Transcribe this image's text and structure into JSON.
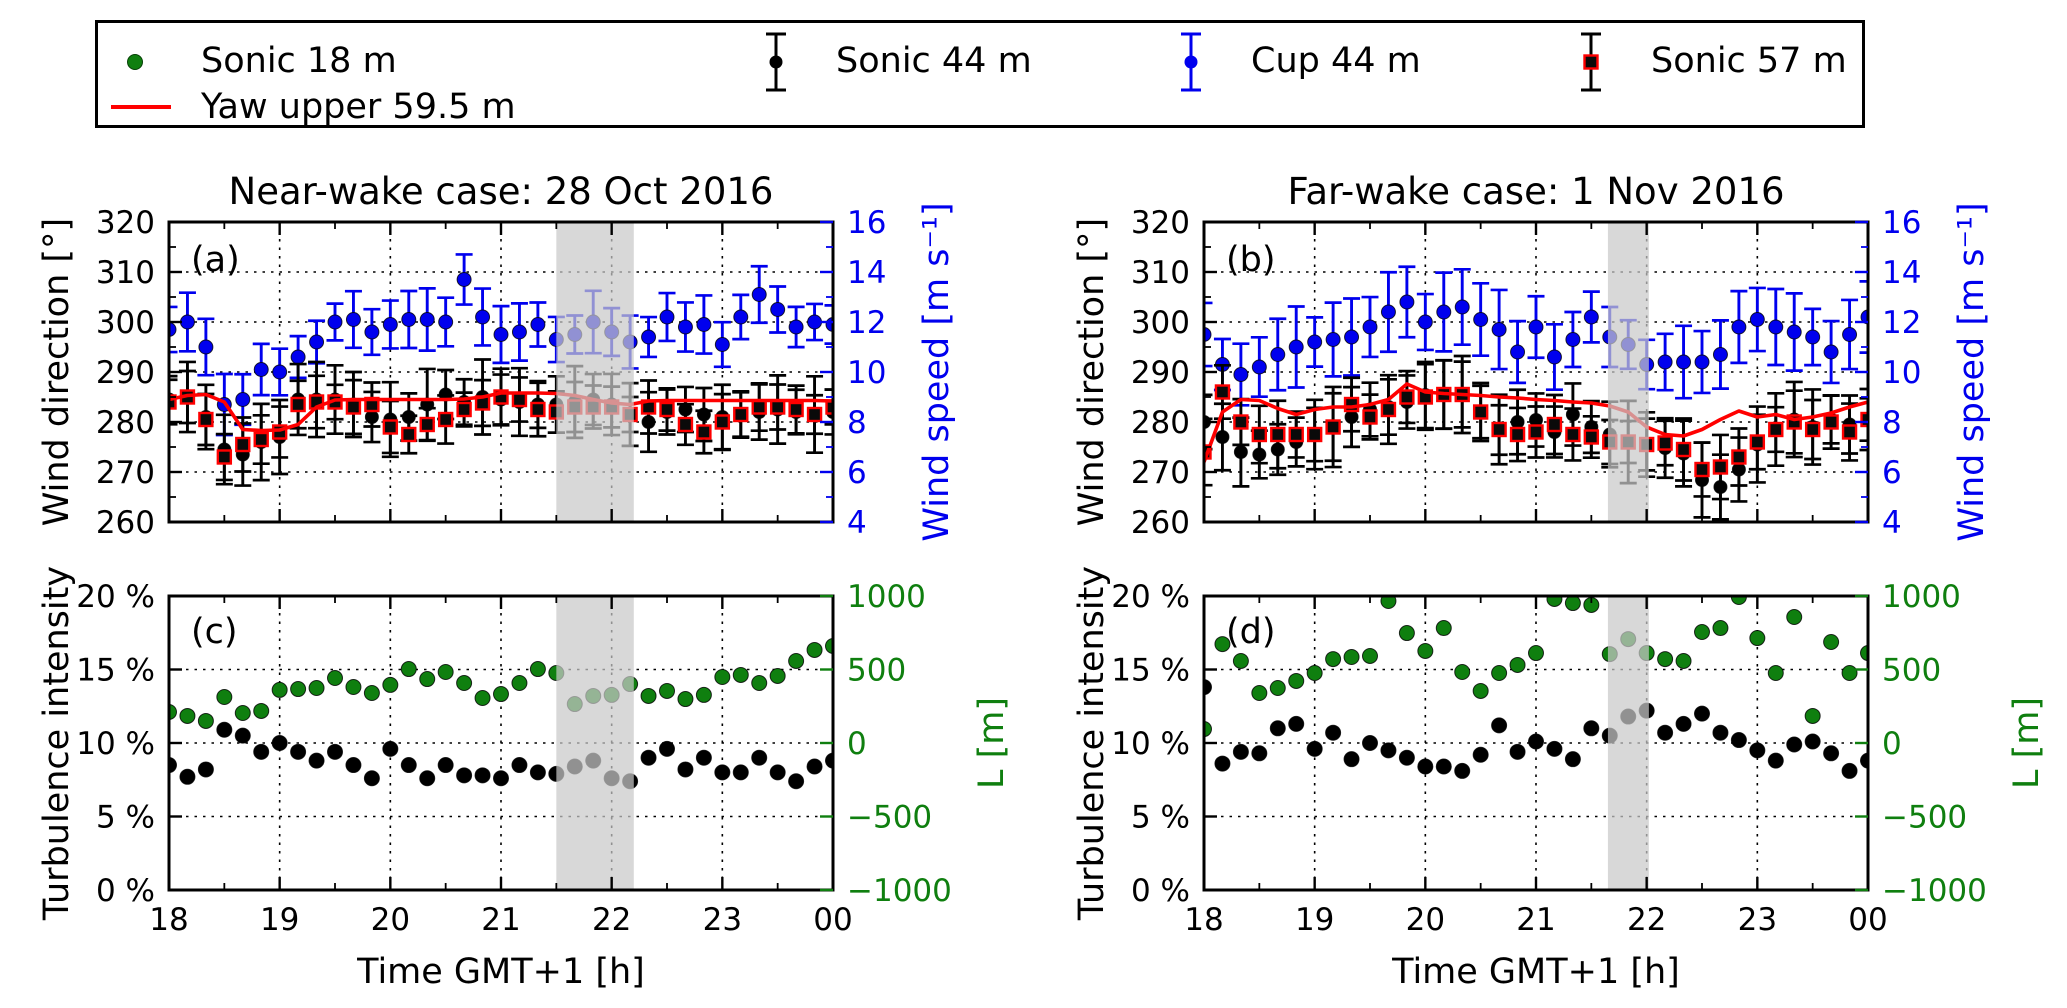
{
  "style": {
    "blue": "#0000ee",
    "green": "#0f7f0f",
    "red": "#ff0000",
    "black": "#000000",
    "band_grey": "#c9c9c9",
    "background": "#ffffff"
  },
  "legend": {
    "items": [
      {
        "id": "sonic18",
        "label": "Sonic 18 m",
        "marker": "dot",
        "color": "#0f7f0f"
      },
      {
        "id": "sonic44",
        "label": "Sonic 44 m",
        "marker": "errorbar-dot",
        "color": "#000000"
      },
      {
        "id": "cup44",
        "label": "Cup 44 m",
        "marker": "errorbar-dot",
        "color": "#0000ee"
      },
      {
        "id": "sonic57",
        "label": "Sonic 57 m",
        "marker": "errorbar-square",
        "color": "#000000",
        "edge": "#ff0000"
      },
      {
        "id": "yaw",
        "label": "Yaw upper 59.5 m",
        "marker": "line",
        "color": "#ff0000"
      }
    ]
  },
  "axes": {
    "x": {
      "label": "Time GMT+1 [h]",
      "ticks": [
        "18",
        "19",
        "20",
        "21",
        "22",
        "23",
        "00"
      ],
      "tick_values": [
        18,
        19,
        20,
        21,
        22,
        23,
        24
      ],
      "grid": [
        19,
        20,
        21,
        22,
        23
      ],
      "minor_step": 0.5,
      "range": [
        18,
        24
      ]
    },
    "wind_direction": {
      "label": "Wind direction [°]",
      "ticks": [
        "320",
        "310",
        "300",
        "290",
        "280",
        "270",
        "260"
      ],
      "tick_values": [
        320,
        310,
        300,
        290,
        280,
        270,
        260
      ],
      "range": [
        260,
        320
      ],
      "grid": [
        310,
        300,
        290,
        280,
        270
      ],
      "minor_step": 5
    },
    "wind_speed": {
      "label": "Wind speed [m s⁻¹]",
      "ticks": [
        "16",
        "14",
        "12",
        "10",
        "8",
        "6",
        "4"
      ],
      "tick_values": [
        16,
        14,
        12,
        10,
        8,
        6,
        4
      ],
      "range": [
        4,
        16
      ],
      "minor_step": 1,
      "color": "#0000ee"
    },
    "turbulence": {
      "label": "Turbulence intensity",
      "ticks": [
        "20 %",
        "15 %",
        "10 %",
        "5 %",
        "0 %"
      ],
      "tick_values": [
        20,
        15,
        10,
        5,
        0
      ],
      "range": [
        0,
        20
      ],
      "grid": [
        15,
        10,
        5
      ]
    },
    "obukhov": {
      "label": "L [m]",
      "ticks": [
        "1000",
        "500",
        "0",
        "−500",
        "−1000"
      ],
      "tick_values": [
        1000,
        500,
        0,
        -500,
        -1000
      ],
      "range": [
        -1000,
        1000
      ],
      "color": "#0f7f0f"
    }
  },
  "chart_data": [
    {
      "id": "a",
      "tag": "(a)",
      "type": "scatter+line",
      "position": "top-left",
      "title": "Near-wake case: 28 Oct 2016",
      "left_axis": "wind_direction",
      "right_axis": "wind_speed",
      "time_start": 18.0,
      "time_step_h": 0.166667,
      "shaded_band_time": [
        21.5,
        22.2
      ],
      "series": [
        {
          "name": "Cup 44 m",
          "axis": "right",
          "marker": "dot",
          "color_key": "blue",
          "size": 7,
          "err": 1.0,
          "values": [
            11.7,
            12.0,
            11.0,
            8.7,
            8.9,
            10.1,
            10.0,
            10.6,
            11.2,
            12.0,
            12.1,
            11.6,
            11.9,
            12.1,
            12.1,
            12.0,
            13.7,
            12.2,
            11.5,
            11.6,
            11.9,
            11.3,
            11.5,
            12.0,
            11.6,
            11.2,
            11.4,
            12.2,
            11.8,
            11.9,
            11.1,
            12.2,
            13.1,
            12.5,
            11.8,
            12.0,
            11.9
          ]
        },
        {
          "name": "Sonic 44 m",
          "axis": "left",
          "marker": "dot",
          "color_key": "black",
          "size": 6.5,
          "err": 6.0,
          "values": [
            284.5,
            285.0,
            281.0,
            274.5,
            273.5,
            276.0,
            277.0,
            284.5,
            284.5,
            284.5,
            283.5,
            281.0,
            280.5,
            281.0,
            283.5,
            285.5,
            284.0,
            285.0,
            284.5,
            284.0,
            283.5,
            283.5,
            284.0,
            284.5,
            283.5,
            281.5,
            280.0,
            282.0,
            282.5,
            281.5,
            281.0,
            281.5,
            282.0,
            282.5,
            282.0,
            281.5,
            282.0
          ]
        },
        {
          "name": "Sonic 57 m",
          "axis": "left",
          "marker": "square",
          "color_key": "black",
          "edge_key": "red",
          "size": 13,
          "err": 4.5,
          "values": [
            284.0,
            285.0,
            280.5,
            273.0,
            275.5,
            276.5,
            278.0,
            283.5,
            284.0,
            284.0,
            283.0,
            283.5,
            279.0,
            277.5,
            279.5,
            280.5,
            282.5,
            283.8,
            285.0,
            284.5,
            282.5,
            282.0,
            283.0,
            283.0,
            283.0,
            281.5,
            283.0,
            282.5,
            279.5,
            278.0,
            280.0,
            281.5,
            283.0,
            283.0,
            282.5,
            281.5,
            283.0
          ]
        },
        {
          "name": "Yaw upper 59.5 m",
          "axis": "left",
          "marker": "line",
          "color_key": "red",
          "values": [
            284.5,
            285.3,
            285.5,
            284.0,
            278.5,
            278.3,
            278.4,
            279.5,
            283.0,
            284.4,
            284.5,
            284.5,
            284.5,
            284.5,
            284.5,
            284.5,
            284.6,
            285.0,
            285.8,
            285.8,
            285.8,
            285.7,
            285.3,
            284.5,
            283.8,
            283.5,
            284.2,
            284.3,
            284.3,
            284.3,
            284.3,
            284.3,
            284.3,
            284.3,
            284.3,
            284.3,
            284.2
          ]
        }
      ]
    },
    {
      "id": "b",
      "tag": "(b)",
      "type": "scatter+line",
      "position": "top-right",
      "title": "Far-wake case: 1 Nov 2016",
      "left_axis": "wind_direction",
      "right_axis": "wind_speed",
      "time_start": 18.0,
      "time_step_h": 0.166667,
      "shaded_band_time": [
        21.65,
        22.02
      ],
      "series": [
        {
          "name": "Cup 44 m",
          "axis": "right",
          "marker": "dot",
          "color_key": "blue",
          "size": 7,
          "err": 1.3,
          "values": [
            11.5,
            10.3,
            9.9,
            10.2,
            10.7,
            11.0,
            11.2,
            11.3,
            11.4,
            11.8,
            12.4,
            12.8,
            12.0,
            12.4,
            12.6,
            12.1,
            11.7,
            10.8,
            11.8,
            10.6,
            11.3,
            12.2,
            11.4,
            11.1,
            10.3,
            10.4,
            10.4,
            10.4,
            10.7,
            11.8,
            12.1,
            11.8,
            11.6,
            11.4,
            10.8,
            11.5,
            12.2
          ]
        },
        {
          "name": "Sonic 44 m",
          "axis": "left",
          "marker": "dot",
          "color_key": "black",
          "size": 6.5,
          "err": 6.5,
          "values": [
            280.0,
            277.0,
            274.0,
            273.5,
            274.5,
            276.0,
            277.5,
            279.0,
            281.0,
            282.5,
            283.0,
            284.0,
            285.4,
            285.5,
            285.5,
            282.0,
            278.4,
            280.0,
            280.4,
            278.0,
            281.5,
            279.0,
            277.5,
            276.0,
            275.5,
            274.8,
            273.7,
            268.4,
            267.0,
            270.5,
            275.5,
            278.5,
            280.5,
            279.0,
            280.5,
            279.5,
            280.5
          ]
        },
        {
          "name": "Sonic 57 m",
          "axis": "left",
          "marker": "square",
          "color_key": "black",
          "edge_key": "red",
          "size": 13,
          "err": 5.5,
          "values": [
            274.0,
            286.0,
            280.0,
            277.5,
            277.5,
            277.5,
            277.5,
            279.0,
            283.5,
            281.0,
            282.5,
            285.0,
            285.0,
            285.5,
            285.5,
            282.0,
            278.5,
            277.5,
            278.0,
            279.5,
            277.5,
            277.0,
            276.0,
            276.0,
            275.5,
            275.8,
            274.5,
            270.5,
            271.0,
            273.0,
            276.0,
            278.5,
            280.0,
            278.5,
            280.0,
            278.0,
            280.5
          ]
        },
        {
          "name": "Yaw upper 59.5 m",
          "axis": "left",
          "marker": "line",
          "color_key": "red",
          "values": [
            272.0,
            282.0,
            284.5,
            284.3,
            282.7,
            281.5,
            282.5,
            283.0,
            283.0,
            283.5,
            284.5,
            287.6,
            286.0,
            285.7,
            285.5,
            285.3,
            285.0,
            284.8,
            284.5,
            284.3,
            284.0,
            283.8,
            283.2,
            282.0,
            279.0,
            277.5,
            277.2,
            278.5,
            280.5,
            282.2,
            281.0,
            281.5,
            280.5,
            281.0,
            281.8,
            283.0,
            284.0
          ]
        }
      ]
    },
    {
      "id": "c",
      "tag": "(c)",
      "type": "scatter",
      "position": "bottom-left",
      "title": "",
      "left_axis": "turbulence",
      "right_axis": "obukhov",
      "time_start": 18.0,
      "time_step_h": 0.166667,
      "shaded_band_time": [
        21.5,
        22.2
      ],
      "series": [
        {
          "name": "Turbulence intensity Sonic 44 m",
          "axis": "left",
          "marker": "dot",
          "color_key": "black",
          "size": 7.5,
          "values": [
            8.5,
            7.7,
            8.2,
            10.9,
            10.5,
            9.4,
            10.0,
            9.4,
            8.8,
            9.4,
            8.5,
            7.6,
            9.6,
            8.5,
            7.6,
            8.5,
            7.8,
            7.8,
            7.6,
            8.5,
            8.0,
            7.9,
            8.4,
            8.8,
            7.6,
            7.4,
            9.0,
            9.6,
            8.2,
            9.0,
            8.0,
            8.0,
            9.0,
            8.0,
            7.4,
            8.4,
            8.8
          ]
        },
        {
          "name": "Obukhov length L Sonic 18 m",
          "axis": "right",
          "marker": "dot",
          "color_key": "green",
          "size": 7.5,
          "values": [
            211,
            184,
            150,
            313,
            204,
            218,
            361,
            367,
            374,
            442,
            381,
            340,
            395,
            503,
            435,
            483,
            408,
            306,
            333,
            408,
            503,
            476,
            265,
            320,
            327,
            401,
            320,
            354,
            299,
            327,
            449,
            463,
            408,
            456,
            558,
            633,
            660
          ]
        }
      ]
    },
    {
      "id": "d",
      "tag": "(d)",
      "type": "scatter",
      "position": "bottom-right",
      "title": "",
      "left_axis": "turbulence",
      "right_axis": "obukhov",
      "time_start": 18.0,
      "time_step_h": 0.166667,
      "shaded_band_time": [
        21.65,
        22.02
      ],
      "series": [
        {
          "name": "Turbulence intensity Sonic 44 m",
          "axis": "left",
          "marker": "dot",
          "color_key": "black",
          "size": 7.5,
          "values": [
            13.8,
            8.6,
            9.4,
            9.3,
            11.0,
            11.3,
            9.6,
            10.7,
            8.9,
            10.0,
            9.5,
            9.0,
            8.4,
            8.4,
            8.1,
            9.2,
            11.2,
            9.4,
            10.1,
            9.6,
            8.9,
            11.0,
            10.5,
            11.8,
            12.2,
            10.7,
            11.3,
            12.0,
            10.7,
            10.2,
            9.5,
            8.8,
            9.9,
            10.1,
            9.3,
            8.1,
            8.8
          ]
        },
        {
          "name": "Obukhov length L Sonic 18 m",
          "axis": "right",
          "marker": "dot",
          "color_key": "green",
          "size": 7.5,
          "values": [
            95,
            673,
            558,
            340,
            374,
            422,
            476,
            571,
            585,
            592,
            966,
            748,
            626,
            782,
            483,
            354,
            476,
            531,
            612,
            980,
            952,
            939,
            605,
            707,
            612,
            571,
            558,
            755,
            782,
            993,
            714,
            476,
            857,
            184,
            687,
            476,
            612
          ]
        }
      ]
    }
  ]
}
